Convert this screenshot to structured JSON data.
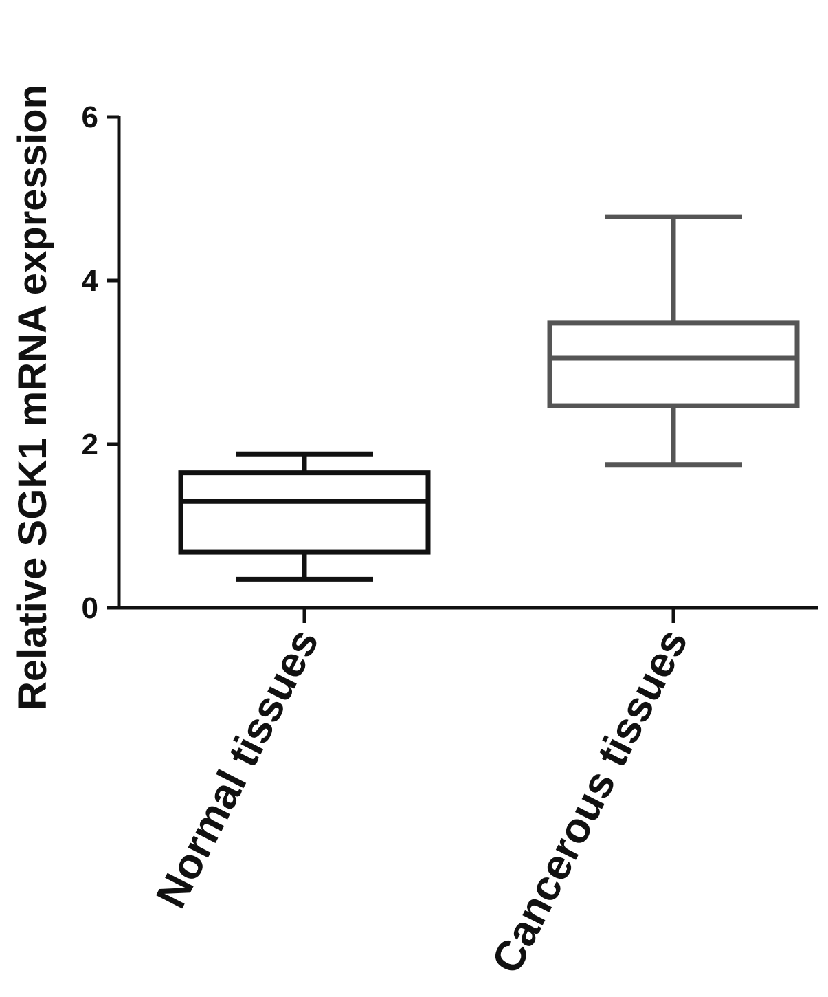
{
  "chart_data": {
    "type": "box",
    "title": "",
    "xlabel": "",
    "ylabel": "Relative SGK1 mRNA expression",
    "ylim": [
      0,
      6
    ],
    "yticks": [
      0,
      2,
      4,
      6
    ],
    "grid": false,
    "categories": [
      "Normal tissues",
      "Cancerous tissues"
    ],
    "series": [
      {
        "category": "Normal tissues",
        "color": "#111111",
        "min": 0.35,
        "q1": 0.68,
        "median": 1.3,
        "q3": 1.65,
        "max": 1.88
      },
      {
        "category": "Cancerous tissues",
        "color": "#555555",
        "min": 1.75,
        "q1": 2.47,
        "median": 3.05,
        "q3": 3.48,
        "max": 4.78
      }
    ]
  }
}
